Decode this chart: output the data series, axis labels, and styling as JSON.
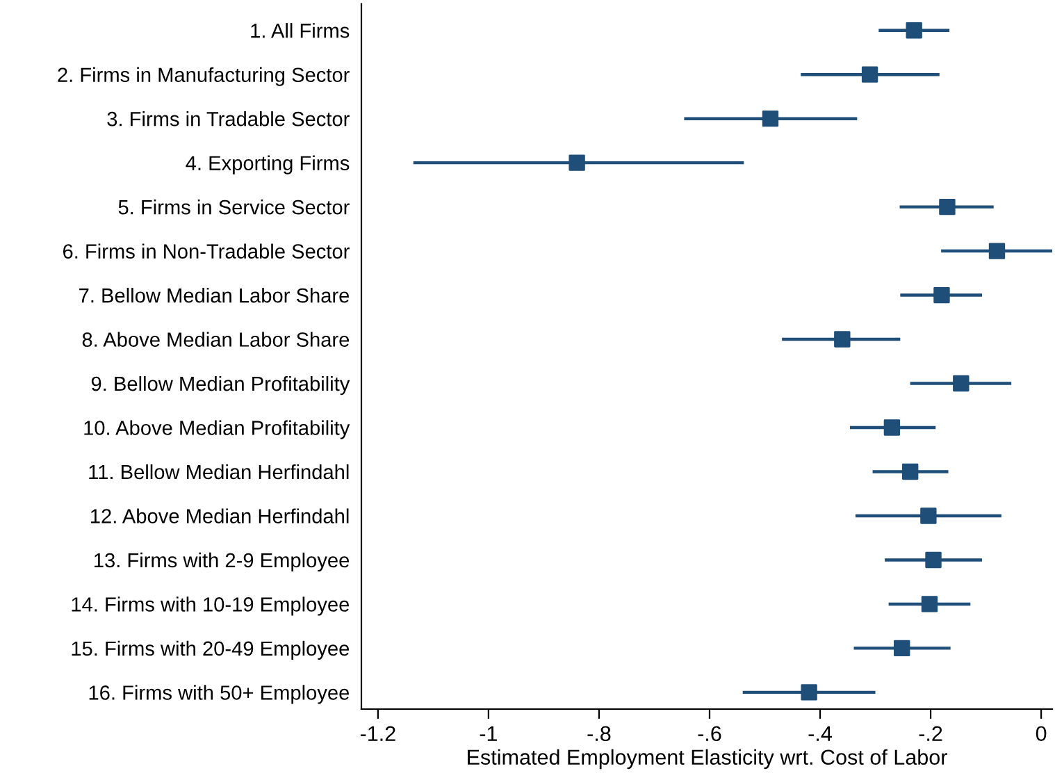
{
  "chart_data": {
    "type": "scatter",
    "orientation": "horizontal",
    "xlabel": "Estimated Employment Elasticity wrt. Cost of Labor",
    "categories": [
      "1. All Firms",
      "2. Firms in Manufacturing Sector",
      "3. Firms in Tradable Sector",
      "4. Exporting Firms",
      "5. Firms in Service Sector",
      "6. Firms in Non-Tradable Sector",
      "7. Bellow Median Labor Share",
      "8. Above Median Labor Share",
      "9. Bellow Median Profitability",
      "10. Above Median Profitability",
      "11. Bellow Median Herfindahl",
      "12. Above Median Herfindahl",
      "13. Firms with 2-9 Employee",
      "14. Firms with 10-19 Employee",
      "15. Firms with 20-49 Employee",
      "16. Firms with 50+ Employee"
    ],
    "values": [
      -0.23,
      -0.31,
      -0.49,
      -0.84,
      -0.17,
      -0.08,
      -0.18,
      -0.36,
      -0.145,
      -0.27,
      -0.237,
      -0.204,
      -0.195,
      -0.202,
      -0.252,
      -0.42
    ],
    "errors": [
      [
        -0.294,
        -0.166
      ],
      [
        -0.435,
        -0.184
      ],
      [
        -0.646,
        -0.333
      ],
      [
        -1.136,
        -0.538
      ],
      [
        -0.256,
        -0.086
      ],
      [
        -0.181,
        0.02
      ],
      [
        -0.255,
        -0.107
      ],
      [
        -0.469,
        -0.255
      ],
      [
        -0.237,
        -0.054
      ],
      [
        -0.346,
        -0.191
      ],
      [
        -0.305,
        -0.168
      ],
      [
        -0.336,
        -0.072
      ],
      [
        -0.283,
        -0.107
      ],
      [
        -0.276,
        -0.128
      ],
      [
        -0.339,
        -0.164
      ],
      [
        -0.54,
        -0.3
      ]
    ],
    "color": "#1f4e79",
    "marker": "square",
    "grid": false,
    "legend": false,
    "xlim": [
      -1.23,
      0.02
    ],
    "xticks": [
      {
        "value": -1.2,
        "label": "-1.2"
      },
      {
        "value": -1,
        "label": "-1"
      },
      {
        "value": -0.8,
        "label": "-.8"
      },
      {
        "value": -0.6,
        "label": "-.6"
      },
      {
        "value": -0.4,
        "label": "-.4"
      },
      {
        "value": -0.2,
        "label": "-.2"
      },
      {
        "value": 0,
        "label": "0"
      }
    ]
  }
}
